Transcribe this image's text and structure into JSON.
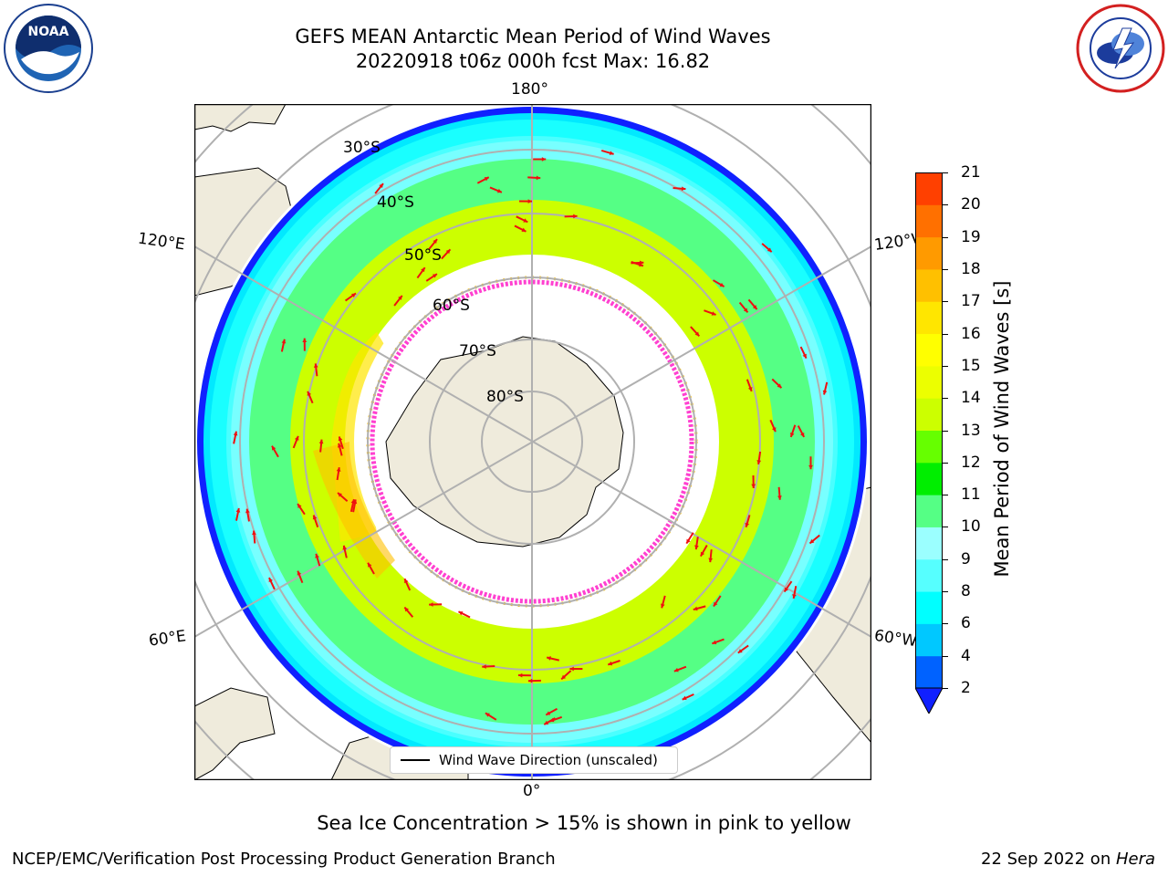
{
  "title": {
    "line1": "GEFS MEAN Antarctic Mean Period of Wind Waves",
    "line2": "20220918 t06z 000h fcst   Max: 16.82"
  },
  "logos": [
    {
      "name": "noaa-logo",
      "text": "NOAA",
      "ring_text": "NATIONAL OCEANIC AND ATMOSPHERIC ADMINISTRATION · U.S. DEPARTMENT OF COMMERCE"
    },
    {
      "name": "nws-logo",
      "ring_text": "NATIONAL WEATHER SERVICE"
    }
  ],
  "map": {
    "projection": "south polar stereographic",
    "longitude_labels": [
      "180°",
      "120°E",
      "120°W",
      "60°E",
      "60°W",
      "0°"
    ],
    "latitude_labels": [
      "30°S",
      "40°S",
      "50°S",
      "60°S",
      "70°S",
      "80°S"
    ],
    "legend": "Wind Wave Direction (unscaled)"
  },
  "colorbar": {
    "label": "Mean Period of Wind Waves [s]",
    "ticks": [
      "21",
      "20",
      "19",
      "18",
      "17",
      "16",
      "15",
      "14",
      "13",
      "12",
      "11",
      "10",
      "9",
      "8",
      "6",
      "4",
      "2"
    ],
    "levels": [
      2,
      4,
      6,
      7,
      8,
      9,
      10,
      11,
      12,
      13,
      14,
      15,
      16,
      17,
      18,
      19,
      20,
      21
    ],
    "colors": [
      "#0062ff",
      "#00c8ff",
      "#00ffff",
      "#56ffff",
      "#9bffff",
      "#55ff85",
      "#00ee00",
      "#66ff00",
      "#ccff00",
      "#ecff00",
      "#ffff00",
      "#ffe600",
      "#ffc000",
      "#ff9a00",
      "#ff7000",
      "#ff4000",
      "#ff0000"
    ],
    "under_color": "#1020ff",
    "extend": "min"
  },
  "note": "Sea Ice Concentration > 15% is shown in pink to yellow",
  "footer": {
    "left": "NCEP/EMC/Verification Post Processing Product Generation Branch",
    "right_prefix": "22 Sep 2022 on ",
    "right_italic": "Hera"
  }
}
